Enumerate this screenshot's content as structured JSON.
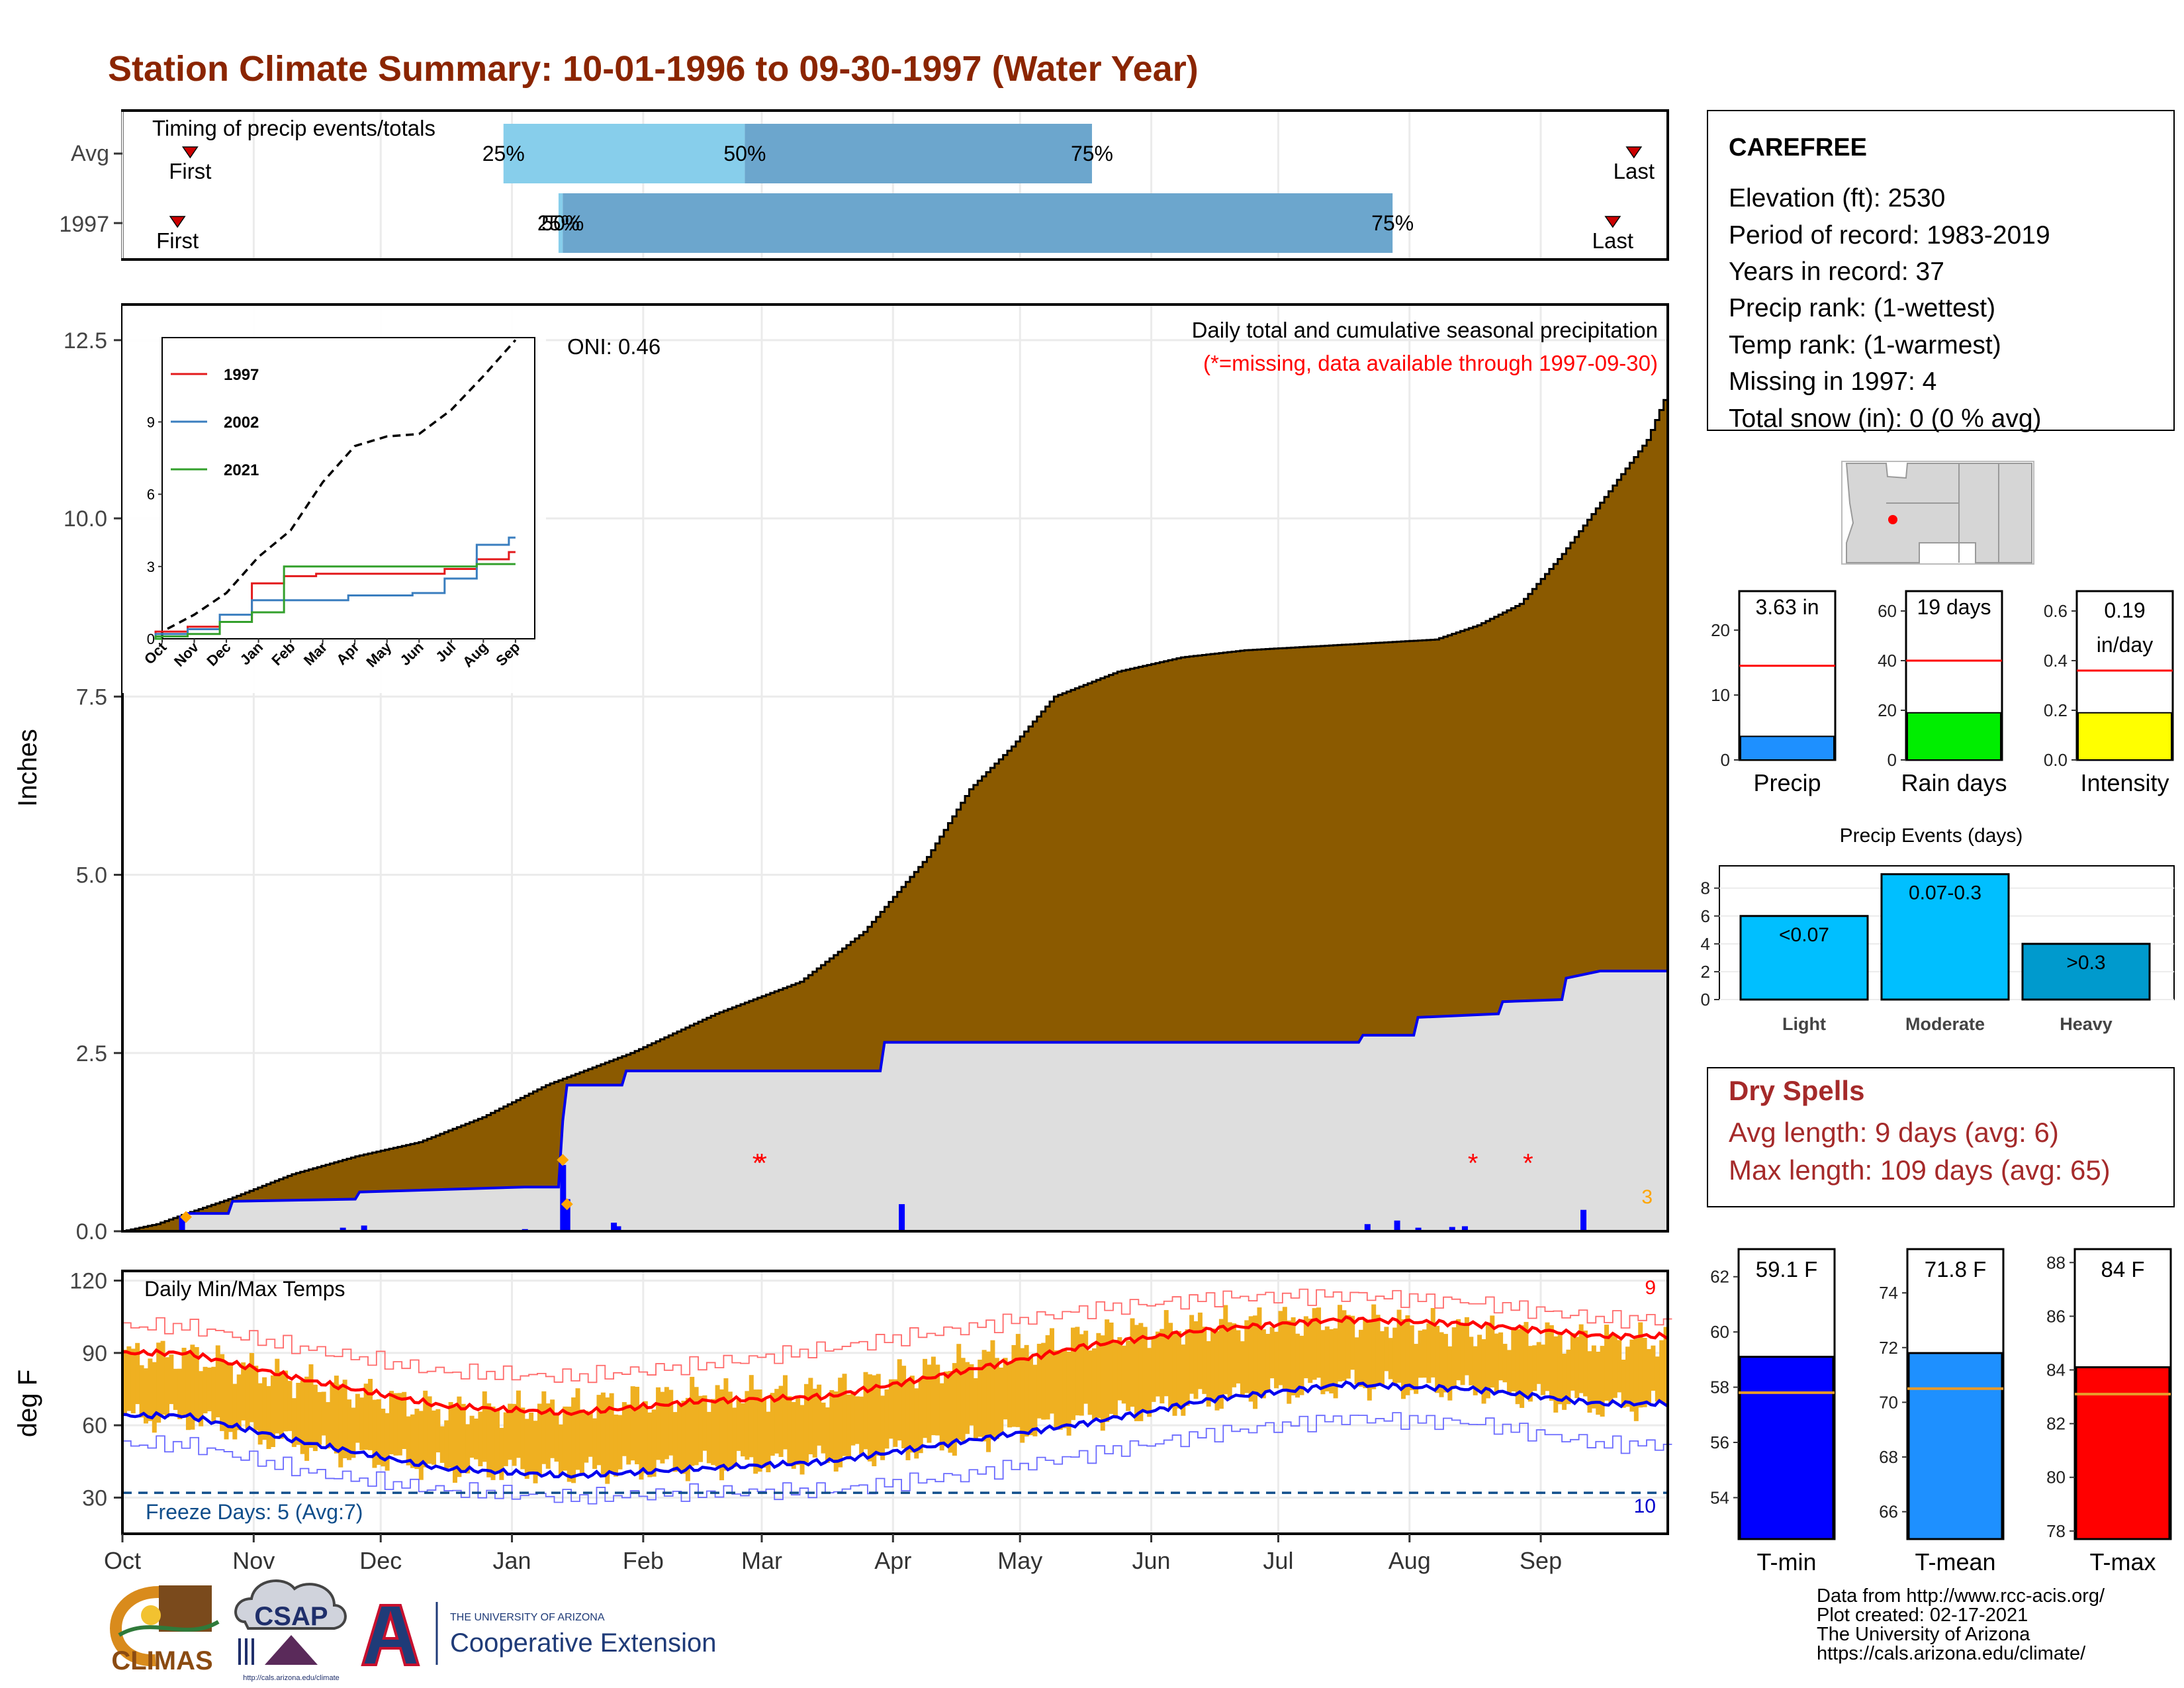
{
  "title": "Station Climate Summary: 10-01-1996 to 09-30-1997 (Water Year)",
  "colors": {
    "title": "#8b2500",
    "cum_fill": "#8b5a00",
    "avg_fill": "#dedede",
    "avg_line": "#0000ee",
    "temp_bar": "#efb021",
    "tmax": "#ff0000",
    "tmin": "#0000ee",
    "dry_spell": "#a52a2a",
    "missing": "#ff0000",
    "extreme": "#ffa500"
  },
  "timing": {
    "title": "Timing of precip events/totals",
    "rows": [
      {
        "label": "Avg",
        "first": "First",
        "last": "Last",
        "p25": "25%",
        "p50": "50%",
        "p75": "75%"
      },
      {
        "label": "1997",
        "first": "First",
        "last": "Last",
        "p25": "25%",
        "p50": "50%",
        "p75": "75%"
      }
    ]
  },
  "precip": {
    "ylabel": "Inches",
    "yticks": [
      "0.0",
      "2.5",
      "5.0",
      "7.5",
      "10.0",
      "12.5"
    ],
    "caption": "Daily total and cumulative seasonal precipitation",
    "missing_note": "(*=missing, data available through 1997-09-30)",
    "oni": "ONI: 0.46",
    "extreme_count": "3",
    "inset": {
      "yticks": [
        "0",
        "3",
        "6",
        "9"
      ],
      "months": [
        "Oct",
        "Nov",
        "Dec",
        "Jan",
        "Feb",
        "Mar",
        "Apr",
        "May",
        "Jun",
        "Jul",
        "Aug",
        "Sep"
      ],
      "legend": [
        "1997",
        "2002",
        "2021"
      ]
    }
  },
  "months": [
    "Oct",
    "Nov",
    "Dec",
    "Jan",
    "Feb",
    "Mar",
    "Apr",
    "May",
    "Jun",
    "Jul",
    "Aug",
    "Sep"
  ],
  "temps": {
    "ylabel": "deg F",
    "title": "Daily Min/Max Temps",
    "yticks": [
      "30",
      "60",
      "90",
      "120"
    ],
    "freeze": "Freeze Days: 5 (Avg:7)",
    "hot_count": "9",
    "cold_count": "10"
  },
  "station": {
    "name": "CAREFREE",
    "lines": [
      "Elevation (ft): 2530",
      "Period of record: 1983-2019",
      "Years in record: 37",
      "Precip rank:  (1-wettest)",
      "Temp rank:  (1-warmest)",
      "Missing in 1997: 4",
      "Total snow (in): 0 (0 % avg)"
    ]
  },
  "mini_bars": [
    {
      "label": "Precip",
      "value_text": "3.63 in",
      "value": 3.63,
      "avg": 14.5,
      "ymax": 26,
      "ticks": [
        "0",
        "10",
        "20"
      ],
      "tick_vals": [
        0,
        10,
        20
      ],
      "color": "#1e90ff"
    },
    {
      "label": "Rain days",
      "value_text": "19 days",
      "value": 19,
      "avg": 40,
      "ymax": 68,
      "ticks": [
        "0",
        "20",
        "40",
        "60"
      ],
      "tick_vals": [
        0,
        20,
        40,
        60
      ],
      "color": "#00ee00"
    },
    {
      "label": "Intensity",
      "value_text": "0.19 in/day",
      "value": 0.19,
      "avg": 0.36,
      "ymax": 0.68,
      "ticks": [
        "0.0",
        "0.2",
        "0.4",
        "0.6"
      ],
      "tick_vals": [
        0,
        0.2,
        0.4,
        0.6
      ],
      "color": "#ffff00"
    }
  ],
  "events": {
    "title": "Precip Events (days)",
    "yticks": [
      "0",
      "2",
      "4",
      "6",
      "8"
    ],
    "bars": [
      {
        "label": "Light",
        "value_text": "<0.07",
        "value": 6,
        "color": "#00bfff"
      },
      {
        "label": "Moderate",
        "value_text": "0.07-0.3",
        "value": 9,
        "color": "#00bfff"
      },
      {
        "label": "Heavy",
        "value_text": ">0.3",
        "value": 4,
        "color": "#009acd"
      }
    ]
  },
  "dry_spells": {
    "title": "Dry Spells",
    "avg_length": "Avg length: 9 days (avg: 6)",
    "max_length": "Max length: 109 days (avg: 65)"
  },
  "temp_bars": [
    {
      "label": "T-min",
      "value_text": "59.1 F",
      "value": 59.1,
      "avg": 57.8,
      "ylim": [
        52.5,
        63
      ],
      "ticks": [
        "54",
        "56",
        "58",
        "60",
        "62"
      ],
      "tick_vals": [
        54,
        56,
        58,
        60,
        62
      ],
      "color": "#0000ff"
    },
    {
      "label": "T-mean",
      "value_text": "71.8 F",
      "value": 71.8,
      "avg": 70.5,
      "ylim": [
        65,
        75.6
      ],
      "ticks": [
        "66",
        "68",
        "70",
        "72",
        "74"
      ],
      "tick_vals": [
        66,
        68,
        70,
        72,
        74
      ],
      "color": "#1e90ff"
    },
    {
      "label": "T-max",
      "value_text": "84 F",
      "value": 84.1,
      "avg": 83.1,
      "ylim": [
        77.7,
        88.5
      ],
      "ticks": [
        "78",
        "80",
        "82",
        "84",
        "86",
        "88"
      ],
      "tick_vals": [
        78,
        80,
        82,
        84,
        86,
        88
      ],
      "color": "#ff0000"
    }
  ],
  "footer": {
    "credits": [
      "Data from http://www.rcc-acis.org/",
      "Plot created: 02-17-2021",
      "The University of Arizona",
      "https://cals.arizona.edu/climate/"
    ],
    "logo_climas": "CLIMAS",
    "logo_csap": "CSAP",
    "logo_csap_url": "http://cals.arizona.edu/climate",
    "ua_top": "THE UNIVERSITY OF ARIZONA",
    "ua_bottom": "Cooperative Extension"
  },
  "chart_data": [
    {
      "type": "bar",
      "title": "Timing of precip events/totals",
      "categories": [
        "Avg",
        "1997"
      ],
      "series": [
        {
          "name": "25%",
          "values": [
            "Dec 30",
            "Jan 12"
          ]
        },
        {
          "name": "50%",
          "values": [
            "Feb 25",
            "Jan 13"
          ]
        },
        {
          "name": "75%",
          "values": [
            "May 18",
            "Jul 28"
          ]
        },
        {
          "name": "First",
          "values": [
            "Oct 17",
            "Oct 14"
          ]
        },
        {
          "name": "Last",
          "values": [
            "Sep 23",
            "Sep 18"
          ]
        }
      ]
    },
    {
      "type": "area",
      "title": "Daily total and cumulative seasonal precipitation",
      "ylabel": "Inches",
      "ylim": [
        0,
        13
      ],
      "x_domain": [
        "1996-10-01",
        "1997-09-30"
      ],
      "series": [
        {
          "name": "cumulative average",
          "points": [
            [
              0,
              0
            ],
            [
              8,
              0.1
            ],
            [
              15,
              0.25
            ],
            [
              25,
              0.45
            ],
            [
              40,
              0.8
            ],
            [
              55,
              1.05
            ],
            [
              70,
              1.25
            ],
            [
              85,
              1.6
            ],
            [
              100,
              2.05
            ],
            [
              120,
              2.5
            ],
            [
              140,
              3.05
            ],
            [
              160,
              3.5
            ],
            [
              175,
              4.2
            ],
            [
              190,
              5.25
            ],
            [
              200,
              6.2
            ],
            [
              210,
              6.8
            ],
            [
              220,
              7.5
            ],
            [
              235,
              7.85
            ],
            [
              250,
              8.05
            ],
            [
              265,
              8.15
            ],
            [
              280,
              8.2
            ],
            [
              295,
              8.25
            ],
            [
              310,
              8.3
            ],
            [
              320,
              8.5
            ],
            [
              330,
              8.8
            ],
            [
              340,
              9.5
            ],
            [
              350,
              10.3
            ],
            [
              360,
              11.1
            ],
            [
              365,
              11.8
            ]
          ]
        },
        {
          "name": "1997 cumulative",
          "points": [
            [
              0,
              0
            ],
            [
              14,
              0
            ],
            [
              15,
              0.25
            ],
            [
              25,
              0.25
            ],
            [
              26,
              0.42
            ],
            [
              55,
              0.45
            ],
            [
              56,
              0.55
            ],
            [
              95,
              0.62
            ],
            [
              103,
              0.62
            ],
            [
              104,
              1.55
            ],
            [
              105,
              2.05
            ],
            [
              118,
              2.05
            ],
            [
              119,
              2.25
            ],
            [
              179,
              2.25
            ],
            [
              180,
              2.65
            ],
            [
              292,
              2.65
            ],
            [
              293,
              2.75
            ],
            [
              305,
              2.75
            ],
            [
              306,
              3.0
            ],
            [
              325,
              3.05
            ],
            [
              326,
              3.22
            ],
            [
              340,
              3.25
            ],
            [
              341,
              3.55
            ],
            [
              349,
              3.65
            ],
            [
              365,
              3.65
            ]
          ]
        }
      ],
      "daily_precip": [
        [
          14,
          0.22
        ],
        [
          52,
          0.05
        ],
        [
          57,
          0.08
        ],
        [
          95,
          0.03
        ],
        [
          104,
          0.93
        ],
        [
          105,
          0.45
        ],
        [
          116,
          0.12
        ],
        [
          117,
          0.07
        ],
        [
          184,
          0.38
        ],
        [
          294,
          0.1
        ],
        [
          301,
          0.15
        ],
        [
          306,
          0.05
        ],
        [
          314,
          0.06
        ],
        [
          317,
          0.07
        ],
        [
          345,
          0.3
        ]
      ],
      "missing": [
        [
          "1997-02-28",
          "1997-03-01"
        ],
        [
          "1997-08-16"
        ],
        [
          "1997-08-29"
        ]
      ],
      "extremes": [
        [
          15,
          0.2
        ],
        [
          104,
          1.0
        ],
        [
          105,
          0.38
        ]
      ]
    },
    {
      "type": "line",
      "title": "",
      "x": [
        "Oct",
        "Nov",
        "Dec",
        "Jan",
        "Feb",
        "Mar",
        "Apr",
        "May",
        "Jun",
        "Jul",
        "Aug",
        "Sep"
      ],
      "ylim": [
        0,
        12.5
      ],
      "series": [
        {
          "name": "",
          "values": [
            0.3,
            1.0,
            1.9,
            3.4,
            4.5,
            6.5,
            8.0,
            8.4,
            8.5,
            9.5,
            10.9,
            12.4
          ]
        },
        {
          "name": "1997",
          "values": [
            0.3,
            0.5,
            0.7,
            2.3,
            2.6,
            2.7,
            2.7,
            2.7,
            2.7,
            2.9,
            3.3,
            3.6
          ]
        },
        {
          "name": "2002",
          "values": [
            0.2,
            0.4,
            1.0,
            1.6,
            1.6,
            1.6,
            1.8,
            1.8,
            1.9,
            2.5,
            3.9,
            4.2
          ]
        },
        {
          "name": "2021",
          "values": [
            0.1,
            0.2,
            0.7,
            1.1,
            3.0,
            3.0,
            3.0,
            3.0,
            3.0,
            3.0,
            3.1,
            3.1
          ]
        }
      ]
    },
    {
      "type": "line",
      "title": "Daily Min/Max Temps",
      "ylabel": "deg F",
      "ylim": [
        15,
        122
      ],
      "x": [
        "Oct",
        "Nov",
        "Dec",
        "Jan",
        "Feb",
        "Mar",
        "Apr",
        "May",
        "Jun",
        "Jul",
        "Aug",
        "Sep"
      ],
      "series": [
        {
          "name": "avg max",
          "values": [
            90,
            78,
            68,
            65,
            70,
            72,
            82,
            93,
            100,
            104,
            102,
            97
          ]
        },
        {
          "name": "avg min",
          "values": [
            64,
            52,
            42,
            39,
            42,
            45,
            53,
            61,
            71,
            77,
            75,
            69
          ]
        },
        {
          "name": "record max",
          "values": [
            101,
            91,
            82,
            80,
            85,
            92,
            100,
            108,
            113,
            114,
            111,
            104
          ]
        },
        {
          "name": "record min",
          "values": [
            52,
            40,
            33,
            30,
            32,
            33,
            39,
            48,
            57,
            63,
            61,
            52
          ]
        },
        {
          "name": "1997 max",
          "values": [
            89,
            77,
            66,
            68,
            73,
            74,
            86,
            97,
            102,
            104,
            99,
            95
          ]
        },
        {
          "name": "1997 min",
          "values": [
            63,
            50,
            42,
            41,
            43,
            46,
            53,
            63,
            71,
            77,
            75,
            68
          ]
        }
      ],
      "freeze_line": 32
    }
  ]
}
